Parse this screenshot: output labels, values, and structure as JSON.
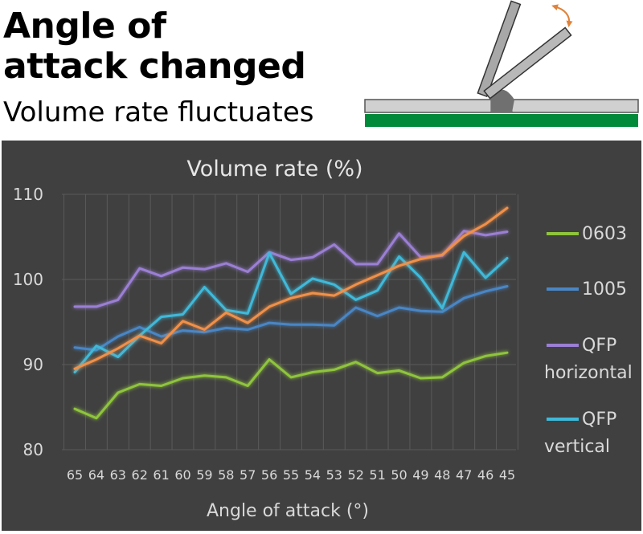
{
  "header": {
    "title_line1": "Angle of",
    "title_line2": "attack changed",
    "subtitle": "Volume rate fluctuates"
  },
  "illustration": {
    "icon": "squeegee-angle-icon",
    "colors": {
      "blade": "#a0a0a0",
      "board": "#008a3a",
      "stencil": "#c8c8c8",
      "arrow": "#e0823a"
    }
  },
  "chart_data": {
    "type": "line",
    "title": "Volume rate (%)",
    "xlabel": "Angle of attack (°)",
    "ylabel": "",
    "ylim": [
      80,
      110
    ],
    "yticks": [
      80,
      90,
      100,
      110
    ],
    "grid": true,
    "legend_position": "right",
    "categories": [
      "65",
      "64",
      "63",
      "62",
      "61",
      "60",
      "59",
      "58",
      "57",
      "56",
      "55",
      "54",
      "53",
      "52",
      "51",
      "50",
      "49",
      "48",
      "47",
      "46",
      "45"
    ],
    "series": [
      {
        "name": "0603",
        "label_lines": [
          "0603"
        ],
        "color": "#8fc43c",
        "values": [
          84.8,
          83.7,
          86.7,
          87.7,
          87.5,
          88.4,
          88.7,
          88.5,
          87.5,
          90.6,
          88.5,
          89.1,
          89.4,
          90.3,
          89.0,
          89.3,
          88.4,
          88.5,
          90.2,
          91.0,
          91.4
        ]
      },
      {
        "name": "1005",
        "label_lines": [
          "1005"
        ],
        "color": "#4a86c5",
        "values": [
          92.0,
          91.7,
          93.3,
          94.4,
          93.3,
          94.0,
          93.8,
          94.3,
          94.1,
          94.9,
          94.7,
          94.7,
          94.6,
          96.7,
          95.7,
          96.7,
          96.3,
          96.2,
          97.8,
          98.6,
          99.2
        ]
      },
      {
        "name": "QFP horizontal",
        "label_lines": [
          "QFP",
          "horizontal"
        ],
        "color": "#9b7fd4",
        "values": [
          96.8,
          96.8,
          97.6,
          101.3,
          100.4,
          101.4,
          101.2,
          101.9,
          100.9,
          103.2,
          102.3,
          102.6,
          104.1,
          101.8,
          101.8,
          105.4,
          102.6,
          102.8,
          105.7,
          105.2,
          105.6
        ]
      },
      {
        "name": "QFP vertical",
        "label_lines": [
          "QFP",
          "vertical"
        ],
        "color": "#3fb9d9",
        "values": [
          89.1,
          92.2,
          90.9,
          93.4,
          95.6,
          95.9,
          99.1,
          96.4,
          96.0,
          103.1,
          98.3,
          100.1,
          99.4,
          97.6,
          98.7,
          102.7,
          100.2,
          96.6,
          103.2,
          100.2,
          102.5
        ]
      },
      {
        "name": "",
        "label_lines": [],
        "color": "#f0904a",
        "values": [
          89.5,
          90.6,
          91.9,
          93.4,
          92.5,
          95.1,
          94.1,
          96.1,
          94.9,
          96.8,
          97.8,
          98.4,
          98.1,
          99.4,
          100.5,
          101.6,
          102.4,
          102.9,
          105.1,
          106.5,
          108.4
        ]
      }
    ]
  },
  "theme": {
    "panel_bg": "#404040",
    "grid_color": "#5a5a5a",
    "text_color": "#d9d9d9",
    "title_color": "#e6e6e6"
  }
}
